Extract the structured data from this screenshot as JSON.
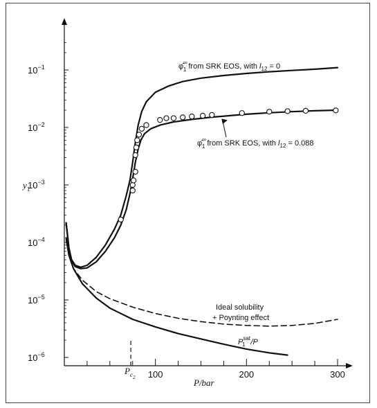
{
  "chart_data": {
    "type": "line",
    "title": "",
    "xlabel": "P/bar",
    "ylabel": "y",
    "ylabel_subscript": "1",
    "xlim": [
      0,
      300
    ],
    "ylim": [
      1e-06,
      0.4
    ],
    "y_scale": "log",
    "x_ticks": [
      {
        "value": 100,
        "label": "100"
      },
      {
        "value": 200,
        "label": "200"
      },
      {
        "value": 300,
        "label": "300"
      }
    ],
    "x_minor_ticks": [
      25,
      50,
      75,
      125,
      150,
      175,
      225,
      250,
      275
    ],
    "y_ticks": [
      {
        "value": 1e-06,
        "base": "10",
        "exp": "−6"
      },
      {
        "value": 1e-05,
        "base": "10",
        "exp": "−5"
      },
      {
        "value": 0.0001,
        "base": "10",
        "exp": "−4"
      },
      {
        "value": 0.001,
        "base": "10",
        "exp": "−3"
      },
      {
        "value": 0.01,
        "base": "10",
        "exp": "−2"
      },
      {
        "value": 0.1,
        "base": "10",
        "exp": "−1"
      }
    ],
    "critical_pressure": {
      "value": 73,
      "label": "P",
      "sub": "c",
      "subsub": "2"
    },
    "series": [
      {
        "name": "φ̂₁^∞ from SRK EOS, with l₁₂ = 0",
        "style": "solid",
        "x": [
          2,
          5,
          8,
          12,
          18,
          25,
          35,
          45,
          55,
          62,
          68,
          72,
          75,
          78,
          81,
          85,
          90,
          100,
          115,
          130,
          150,
          175,
          200,
          225,
          250,
          275,
          300
        ],
        "y": [
          0.00022,
          8e-05,
          5e-05,
          4e-05,
          3.7e-05,
          4e-05,
          5.5e-05,
          9e-05,
          0.00017,
          0.0003,
          0.00065,
          0.0012,
          0.0025,
          0.0055,
          0.011,
          0.019,
          0.028,
          0.041,
          0.053,
          0.063,
          0.072,
          0.08,
          0.087,
          0.093,
          0.098,
          0.103,
          0.11
        ]
      },
      {
        "name": "φ̂₁^∞ from SRK EOS, with l₁₂ = 0.088",
        "style": "solid",
        "x": [
          2,
          5,
          8,
          12,
          18,
          25,
          35,
          45,
          55,
          62,
          68,
          72,
          75,
          78,
          81,
          84,
          88,
          95,
          105,
          120,
          140,
          160,
          180,
          200,
          225,
          250,
          275,
          300
        ],
        "y": [
          0.00022,
          8e-05,
          4.8e-05,
          3.8e-05,
          3.5e-05,
          3.6e-05,
          4.6e-05,
          7e-05,
          0.00012,
          0.0002,
          0.00037,
          0.0007,
          0.0013,
          0.0025,
          0.0042,
          0.006,
          0.0078,
          0.0095,
          0.011,
          0.0125,
          0.0138,
          0.015,
          0.016,
          0.017,
          0.018,
          0.0188,
          0.0195,
          0.02
        ]
      },
      {
        "name": "Ideal solubility + Poynting effect",
        "style": "dashed",
        "x": [
          2,
          5,
          10,
          20,
          35,
          50,
          75,
          100,
          125,
          150,
          175,
          200,
          225,
          250,
          275,
          300
        ],
        "y": [
          0.00011,
          6e-05,
          3.5e-05,
          2.2e-05,
          1.4e-05,
          1.05e-05,
          7.5e-06,
          5.8e-06,
          4.8e-06,
          4.2e-06,
          3.8e-06,
          3.6e-06,
          3.5e-06,
          3.6e-06,
          3.9e-06,
          4.6e-06
        ]
      },
      {
        "name": "P₁^sat/P",
        "style": "solid",
        "x": [
          2,
          5,
          10,
          20,
          35,
          50,
          75,
          100,
          125,
          150,
          175,
          200,
          225,
          245
        ],
        "y": [
          0.00012,
          6e-05,
          3.5e-05,
          1.9e-05,
          1.08e-05,
          7.2e-06,
          4.6e-06,
          3.4e-06,
          2.6e-06,
          2.1e-06,
          1.7e-06,
          1.4e-06,
          1.2e-06,
          1.1e-06
        ]
      }
    ],
    "measured_points": {
      "style": "open-circle",
      "x": [
        62,
        75,
        75,
        76,
        78,
        78,
        79,
        80,
        82,
        85,
        90,
        105,
        112,
        120,
        130,
        140,
        152,
        162,
        195,
        225,
        245,
        265,
        298
      ],
      "y": [
        0.00025,
        0.0008,
        0.001,
        0.0012,
        0.0017,
        0.0033,
        0.0045,
        0.006,
        0.0075,
        0.0095,
        0.011,
        0.0135,
        0.0145,
        0.0145,
        0.015,
        0.0155,
        0.016,
        0.0165,
        0.0178,
        0.0188,
        0.0192,
        0.0195,
        0.0198
      ]
    },
    "annotations": {
      "l0": {
        "phi": "φ̂",
        "sup": "∞",
        "sub": "1",
        "text": " from SRK EOS, with ",
        "l": "l",
        "lsub": "12",
        "val": " = 0"
      },
      "l088": {
        "phi": "φ̂",
        "sup": "∞",
        "sub": "1",
        "text": " from SRK EOS, with ",
        "l": "l",
        "lsub": "12",
        "val": " = 0.088"
      },
      "ideal_line1": "Ideal solubility",
      "ideal_line2": "+ Poynting effect",
      "psat": {
        "P": "P",
        "sup": "sat",
        "sub": "1",
        "tail": "/P"
      }
    }
  }
}
